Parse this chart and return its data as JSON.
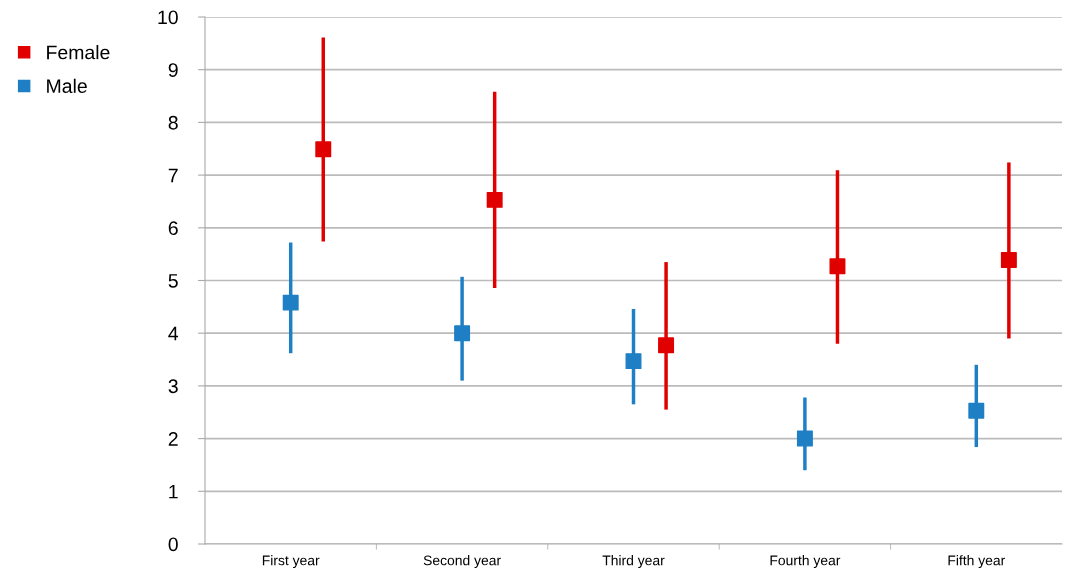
{
  "chart_data": {
    "type": "scatter",
    "categories": [
      "First year",
      "Second year",
      "Third year",
      "Fourth year",
      "Fifth year"
    ],
    "series": [
      {
        "name": "Female",
        "color": "#e00000",
        "values": [
          7.49,
          6.53,
          3.77,
          5.27,
          5.39
        ],
        "errors": [
          [
            5.74,
            9.61
          ],
          [
            4.86,
            8.58
          ],
          [
            2.55,
            5.35
          ],
          [
            3.8,
            7.09
          ],
          [
            3.9,
            7.24
          ]
        ]
      },
      {
        "name": "Male",
        "color": "#1f7fc4",
        "values": [
          4.58,
          4.0,
          3.47,
          2.0,
          2.53
        ],
        "errors": [
          [
            3.62,
            5.72
          ],
          [
            3.1,
            5.07
          ],
          [
            2.65,
            4.46
          ],
          [
            1.4,
            2.78
          ],
          [
            1.84,
            3.4
          ]
        ]
      }
    ],
    "ylim": [
      0,
      10
    ],
    "yticks": [
      0,
      1,
      2,
      3,
      4,
      5,
      6,
      7,
      8,
      9,
      10
    ],
    "grid": "y",
    "legend": "top left",
    "marker": "square"
  }
}
